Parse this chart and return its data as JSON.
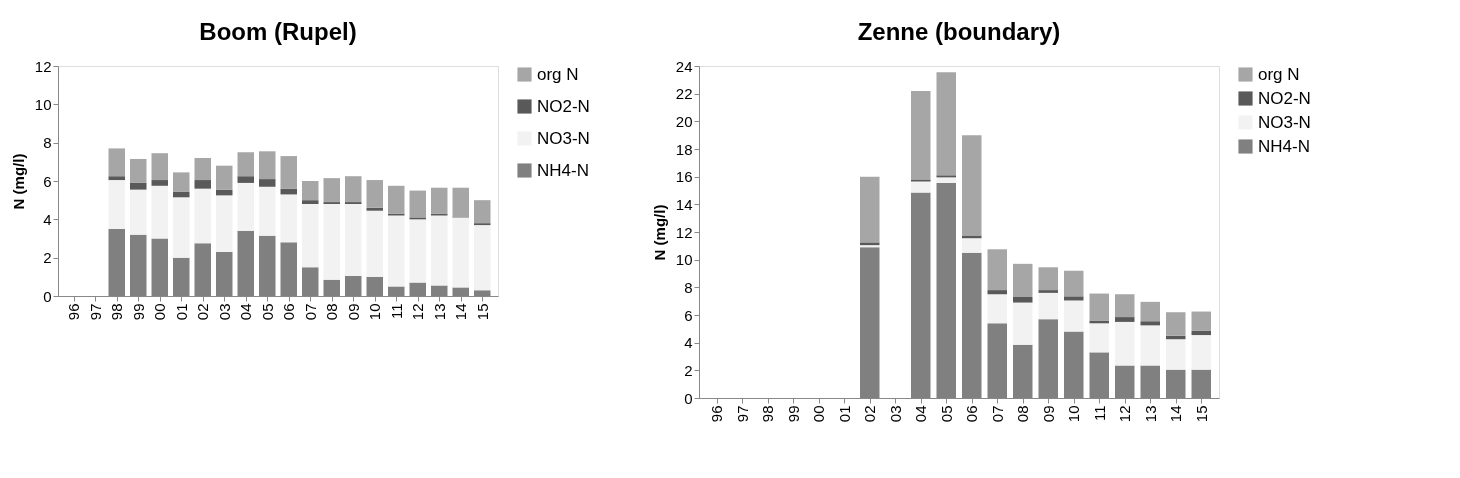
{
  "chart_data": [
    {
      "type": "bar",
      "title": "Boom (Rupel)",
      "ylabel": "N (mg/l)",
      "stacked": true,
      "legend": "right",
      "grid": false,
      "categories": [
        "96",
        "97",
        "98",
        "99",
        "00",
        "01",
        "02",
        "03",
        "04",
        "05",
        "06",
        "07",
        "08",
        "09",
        "10",
        "11",
        "12",
        "13",
        "14",
        "15"
      ],
      "ylim": [
        0,
        12
      ],
      "yticks": [
        0,
        2,
        4,
        6,
        8,
        10,
        12
      ],
      "series": [
        {
          "name": "NH4-N",
          "color": "#808080",
          "values": [
            null,
            null,
            3.5,
            3.2,
            3.0,
            2.0,
            2.75,
            2.3,
            3.4,
            3.15,
            2.8,
            1.5,
            0.85,
            1.05,
            1.0,
            0.5,
            0.7,
            0.55,
            0.45,
            0.3
          ]
        },
        {
          "name": "NO3-N",
          "color": "#f2f2f2",
          "values": [
            null,
            null,
            2.55,
            2.35,
            2.75,
            3.15,
            2.85,
            2.95,
            2.5,
            2.55,
            2.5,
            3.3,
            3.95,
            3.75,
            3.45,
            3.7,
            3.3,
            3.65,
            3.65,
            3.4
          ]
        },
        {
          "name": "NO2-N",
          "color": "#595959",
          "values": [
            null,
            null,
            0.2,
            0.35,
            0.3,
            0.3,
            0.45,
            0.3,
            0.35,
            0.4,
            0.3,
            0.2,
            0.1,
            0.1,
            0.15,
            0.1,
            0.1,
            0.1,
            0.05,
            0.1
          ]
        },
        {
          "name": "org N",
          "color": "#a6a6a6",
          "values": [
            null,
            null,
            1.45,
            1.25,
            1.4,
            1.0,
            1.15,
            1.25,
            1.25,
            1.45,
            1.7,
            1.0,
            1.25,
            1.35,
            1.45,
            1.45,
            1.4,
            1.35,
            1.5,
            1.2
          ]
        }
      ]
    },
    {
      "type": "bar",
      "title": "Zenne (boundary)",
      "ylabel": "N (mg/l)",
      "stacked": true,
      "legend": "right",
      "grid": false,
      "categories": [
        "96",
        "97",
        "98",
        "99",
        "00",
        "01",
        "02",
        "03",
        "04",
        "05",
        "06",
        "07",
        "08",
        "09",
        "10",
        "11",
        "12",
        "13",
        "14",
        "15"
      ],
      "ylim": [
        0,
        24
      ],
      "yticks": [
        0,
        2,
        4,
        6,
        8,
        10,
        12,
        14,
        16,
        18,
        20,
        22,
        24
      ],
      "series": [
        {
          "name": "NH4-N",
          "color": "#808080",
          "values": [
            null,
            null,
            null,
            null,
            null,
            null,
            10.9,
            null,
            14.85,
            15.55,
            10.5,
            5.4,
            3.85,
            5.7,
            4.8,
            3.3,
            2.35,
            2.35,
            2.05,
            2.05
          ]
        },
        {
          "name": "NO3-N",
          "color": "#f2f2f2",
          "values": [
            null,
            null,
            null,
            null,
            null,
            null,
            0.15,
            null,
            0.8,
            0.4,
            1.05,
            2.1,
            3.05,
            1.9,
            2.25,
            2.1,
            3.15,
            2.9,
            2.2,
            2.5
          ]
        },
        {
          "name": "NO2-N",
          "color": "#595959",
          "values": [
            null,
            null,
            null,
            null,
            null,
            null,
            0.2,
            null,
            0.15,
            0.15,
            0.2,
            0.3,
            0.4,
            0.2,
            0.3,
            0.2,
            0.35,
            0.3,
            0.25,
            0.3
          ]
        },
        {
          "name": "org N",
          "color": "#a6a6a6",
          "values": [
            null,
            null,
            null,
            null,
            null,
            null,
            4.75,
            null,
            6.4,
            7.45,
            7.25,
            2.95,
            2.4,
            1.65,
            1.85,
            1.95,
            1.65,
            1.4,
            1.7,
            1.4
          ]
        }
      ]
    }
  ]
}
